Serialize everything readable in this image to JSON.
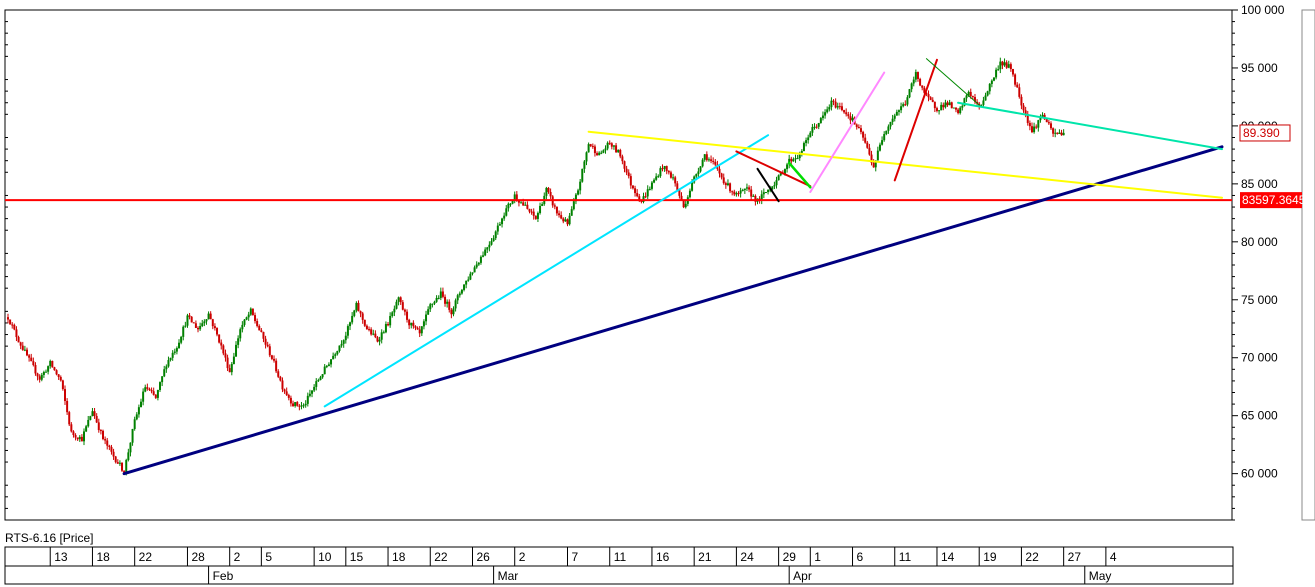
{
  "chart_data": {
    "type": "candlestick",
    "series_name": "RTS-6.16 [Price]",
    "y_ticks": [
      60000,
      65000,
      70000,
      75000,
      80000,
      85000,
      90000,
      95000,
      100000
    ],
    "y_tick_labels": [
      "60 000",
      "65 000",
      "70 000",
      "75 000",
      "80 000",
      "85 000",
      "90 000",
      "95 000",
      "100 000"
    ],
    "ylim": [
      56000,
      100000
    ],
    "x_range": [
      0,
      115
    ],
    "day_ticks": [
      {
        "x": 4,
        "label": "13"
      },
      {
        "x": 8,
        "label": "18"
      },
      {
        "x": 12,
        "label": "22"
      },
      {
        "x": 17,
        "label": "28"
      },
      {
        "x": 21,
        "label": "2"
      },
      {
        "x": 24,
        "label": "5"
      },
      {
        "x": 29,
        "label": "10"
      },
      {
        "x": 32,
        "label": "15"
      },
      {
        "x": 36,
        "label": "18"
      },
      {
        "x": 40,
        "label": "22"
      },
      {
        "x": 44,
        "label": "26"
      },
      {
        "x": 48,
        "label": "2"
      },
      {
        "x": 53,
        "label": "7"
      },
      {
        "x": 57,
        "label": "11"
      },
      {
        "x": 61,
        "label": "16"
      },
      {
        "x": 65,
        "label": "21"
      },
      {
        "x": 69,
        "label": "24"
      },
      {
        "x": 73,
        "label": "29"
      },
      {
        "x": 76,
        "label": "1"
      },
      {
        "x": 80,
        "label": "6"
      },
      {
        "x": 84,
        "label": "11"
      },
      {
        "x": 88,
        "label": "14"
      },
      {
        "x": 92,
        "label": "19"
      },
      {
        "x": 96,
        "label": "22"
      },
      {
        "x": 100,
        "label": "27"
      },
      {
        "x": 104,
        "label": "4"
      }
    ],
    "month_ticks": [
      {
        "x": 19,
        "label": "Feb"
      },
      {
        "x": 46,
        "label": "Mar"
      },
      {
        "x": 74,
        "label": "Apr"
      },
      {
        "x": 102,
        "label": "May"
      }
    ],
    "key_points": [
      [
        0,
        73500
      ],
      [
        1,
        71500
      ],
      [
        2,
        69800
      ],
      [
        3,
        68200
      ],
      [
        4,
        69500
      ],
      [
        5,
        68000
      ],
      [
        6,
        63500
      ],
      [
        7,
        63000
      ],
      [
        8,
        65500
      ],
      [
        9,
        63000
      ],
      [
        10,
        61500
      ],
      [
        11,
        60200
      ],
      [
        12,
        64500
      ],
      [
        13,
        67500
      ],
      [
        14,
        66500
      ],
      [
        15,
        69500
      ],
      [
        16,
        71000
      ],
      [
        17,
        73500
      ],
      [
        18,
        72500
      ],
      [
        19,
        73800
      ],
      [
        20,
        71500
      ],
      [
        21,
        68800
      ],
      [
        22,
        72500
      ],
      [
        23,
        74000
      ],
      [
        24,
        72000
      ],
      [
        25,
        70000
      ],
      [
        26,
        67500
      ],
      [
        27,
        66000
      ],
      [
        28,
        65800
      ],
      [
        29,
        67500
      ],
      [
        30,
        69000
      ],
      [
        31,
        70500
      ],
      [
        32,
        72000
      ],
      [
        33,
        74500
      ],
      [
        34,
        72500
      ],
      [
        35,
        71500
      ],
      [
        36,
        73000
      ],
      [
        37,
        75000
      ],
      [
        38,
        73000
      ],
      [
        39,
        72000
      ],
      [
        40,
        74500
      ],
      [
        41,
        75500
      ],
      [
        42,
        74000
      ],
      [
        43,
        76000
      ],
      [
        44,
        77500
      ],
      [
        45,
        79000
      ],
      [
        46,
        80500
      ],
      [
        47,
        82500
      ],
      [
        48,
        84000
      ],
      [
        49,
        83000
      ],
      [
        50,
        82000
      ],
      [
        51,
        84500
      ],
      [
        52,
        82500
      ],
      [
        53,
        81500
      ],
      [
        54,
        84500
      ],
      [
        55,
        88500
      ],
      [
        56,
        87500
      ],
      [
        57,
        88500
      ],
      [
        58,
        87500
      ],
      [
        59,
        85000
      ],
      [
        60,
        83500
      ],
      [
        61,
        85000
      ],
      [
        62,
        86500
      ],
      [
        63,
        85500
      ],
      [
        64,
        83000
      ],
      [
        65,
        85500
      ],
      [
        66,
        87500
      ],
      [
        67,
        86500
      ],
      [
        68,
        85000
      ],
      [
        69,
        84000
      ],
      [
        70,
        84500
      ],
      [
        71,
        83500
      ],
      [
        72,
        84500
      ],
      [
        73,
        85500
      ],
      [
        74,
        87000
      ],
      [
        75,
        87500
      ],
      [
        76,
        89500
      ],
      [
        77,
        90500
      ],
      [
        78,
        92000
      ],
      [
        79,
        91500
      ],
      [
        80,
        90500
      ],
      [
        81,
        89000
      ],
      [
        82,
        86500
      ],
      [
        83,
        89500
      ],
      [
        84,
        91000
      ],
      [
        85,
        92000
      ],
      [
        86,
        94500
      ],
      [
        87,
        92500
      ],
      [
        88,
        91500
      ],
      [
        89,
        92000
      ],
      [
        90,
        91000
      ],
      [
        91,
        93000
      ],
      [
        92,
        91500
      ],
      [
        93,
        93500
      ],
      [
        94,
        95500
      ],
      [
        95,
        95000
      ],
      [
        96,
        92000
      ],
      [
        97,
        89500
      ],
      [
        98,
        91000
      ],
      [
        99,
        89300
      ],
      [
        100,
        89400
      ]
    ],
    "last_price_label": "89.390",
    "last_price_value": 89390,
    "hline_label": "83597.3645",
    "hline_value": 83597.3645,
    "trendlines": [
      {
        "color": "#000080",
        "width": 3,
        "x1": 11,
        "y1": 60000,
        "x2": 115,
        "y2": 88200
      },
      {
        "color": "#00e5ff",
        "width": 2,
        "x1": 30,
        "y1": 65800,
        "x2": 72,
        "y2": 89200
      },
      {
        "color": "#ffff00",
        "width": 2,
        "x1": 55,
        "y1": 89500,
        "x2": 115,
        "y2": 83800
      },
      {
        "color": "#dd0000",
        "width": 2,
        "x1": 69,
        "y1": 87800,
        "x2": 76,
        "y2": 84800
      },
      {
        "color": "#000000",
        "width": 2,
        "x1": 71,
        "y1": 86300,
        "x2": 73,
        "y2": 83500
      },
      {
        "color": "#00dd00",
        "width": 2.5,
        "x1": 74,
        "y1": 86800,
        "x2": 76,
        "y2": 84700
      },
      {
        "color": "#ff88ff",
        "width": 2,
        "x1": 76,
        "y1": 84300,
        "x2": 83,
        "y2": 94600
      },
      {
        "color": "#dd0000",
        "width": 2,
        "x1": 84,
        "y1": 85300,
        "x2": 88,
        "y2": 95700
      },
      {
        "color": "#008800",
        "width": 1,
        "x1": 87,
        "y1": 95800,
        "x2": 92,
        "y2": 91800
      },
      {
        "color": "#00e5aa",
        "width": 2,
        "x1": 90,
        "y1": 92000,
        "x2": 115,
        "y2": 88000
      }
    ]
  }
}
